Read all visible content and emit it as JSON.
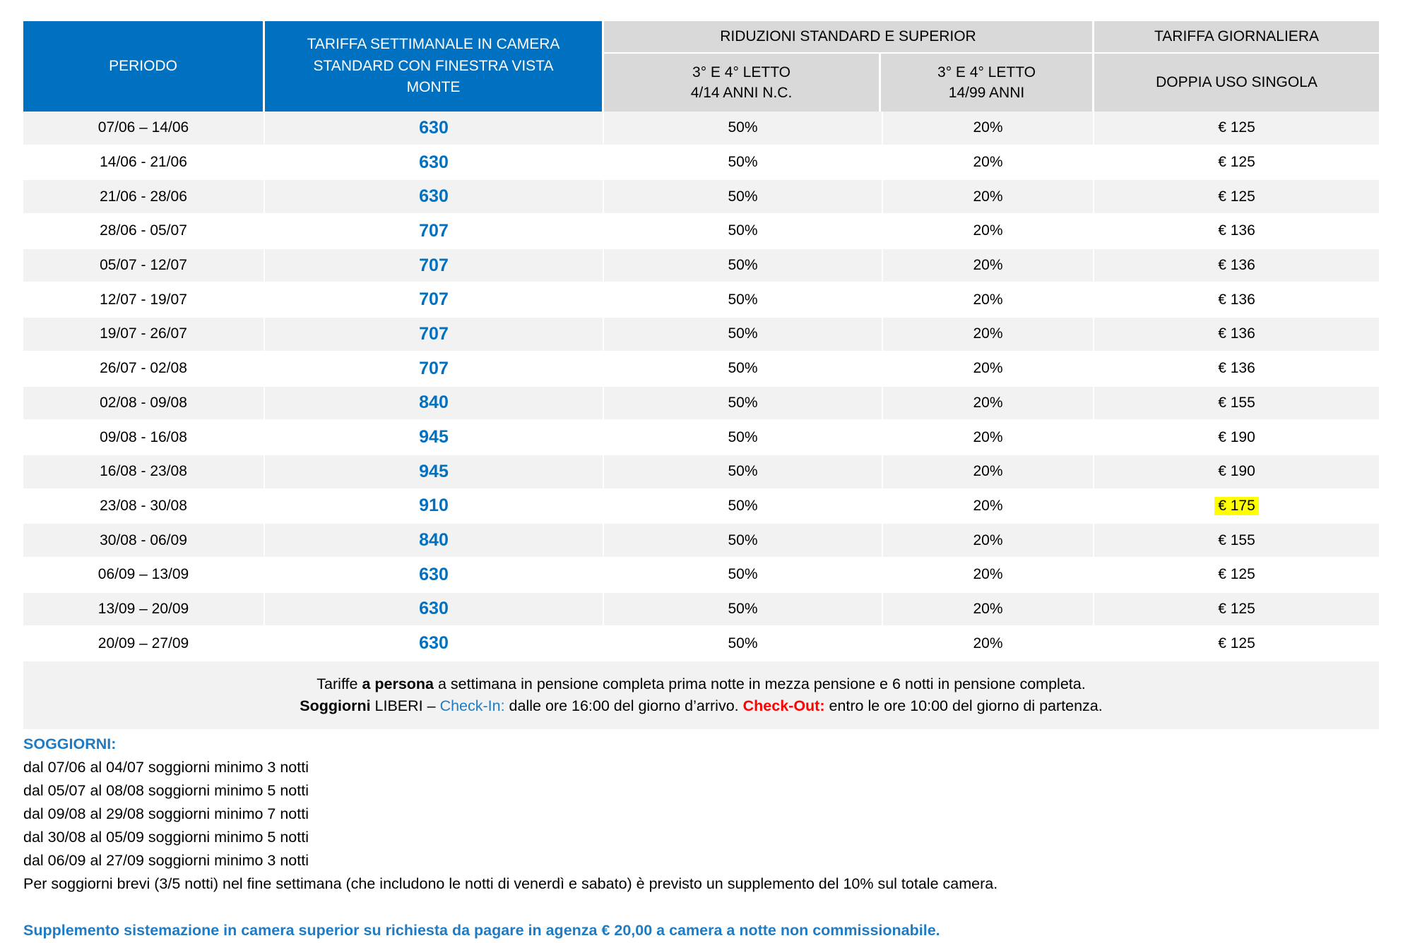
{
  "colors": {
    "header_blue": "#0070C0",
    "header_gray": "#D9D9D9",
    "row_alt_gray": "#F2F2F2",
    "price_blue": "#0070C0",
    "accent_blue": "#1F7CC4",
    "checkout_red": "#FF0000",
    "highlight_yellow": "#FFFF00"
  },
  "table": {
    "header": {
      "periodo": "PERIODO",
      "weekly": "TARIFFA SETTIMANALE IN CAMERA STANDARD CON FINESTRA VISTA MONTE",
      "riduzioni_group": "RIDUZIONI STANDARD E SUPERIOR",
      "col3_line1": "3° E 4° LETTO",
      "col3_line2": "4/14 ANNI N.C.",
      "col4_line1": "3° E 4° LETTO",
      "col4_line2": "14/99 ANNI",
      "daily_group": "TARIFFA GIORNALIERA",
      "daily_sub": "DOPPIA USO SINGOLA"
    },
    "rows": [
      {
        "period": "07/06 – 14/06",
        "weekly": "630",
        "red_child": "50%",
        "red_adult": "20%",
        "daily": "€ 125"
      },
      {
        "period": "14/06 - 21/06",
        "weekly": "630",
        "red_child": "50%",
        "red_adult": "20%",
        "daily": "€ 125"
      },
      {
        "period": "21/06 - 28/06",
        "weekly": "630",
        "red_child": "50%",
        "red_adult": "20%",
        "daily": "€ 125"
      },
      {
        "period": "28/06 - 05/07",
        "weekly": "707",
        "red_child": "50%",
        "red_adult": "20%",
        "daily": "€ 136"
      },
      {
        "period": "05/07 - 12/07",
        "weekly": "707",
        "red_child": "50%",
        "red_adult": "20%",
        "daily": "€ 136"
      },
      {
        "period": "12/07 - 19/07",
        "weekly": "707",
        "red_child": "50%",
        "red_adult": "20%",
        "daily": "€ 136"
      },
      {
        "period": "19/07 - 26/07",
        "weekly": "707",
        "red_child": "50%",
        "red_adult": "20%",
        "daily": "€ 136"
      },
      {
        "period": "26/07 - 02/08",
        "weekly": "707",
        "red_child": "50%",
        "red_adult": "20%",
        "daily": "€ 136"
      },
      {
        "period": "02/08 - 09/08",
        "weekly": "840",
        "red_child": "50%",
        "red_adult": "20%",
        "daily": "€ 155"
      },
      {
        "period": "09/08 - 16/08",
        "weekly": "945",
        "red_child": "50%",
        "red_adult": "20%",
        "daily": "€ 190"
      },
      {
        "period": "16/08 - 23/08",
        "weekly": "945",
        "red_child": "50%",
        "red_adult": "20%",
        "daily": "€ 190"
      },
      {
        "period": "23/08 - 30/08",
        "weekly": "910",
        "red_child": "50%",
        "red_adult": "20%",
        "daily": "€ 175",
        "daily_highlighted": true
      },
      {
        "period": "30/08 - 06/09",
        "weekly": "840",
        "red_child": "50%",
        "red_adult": "20%",
        "daily": "€ 155"
      },
      {
        "period": "06/09 – 13/09",
        "weekly": "630",
        "red_child": "50%",
        "red_adult": "20%",
        "daily": "€ 125"
      },
      {
        "period": "13/09 – 20/09",
        "weekly": "630",
        "red_child": "50%",
        "red_adult": "20%",
        "daily": "€ 125"
      },
      {
        "period": "20/09 – 27/09",
        "weekly": "630",
        "red_child": "50%",
        "red_adult": "20%",
        "daily": "€ 125"
      }
    ]
  },
  "notes": {
    "line1_pre": "Tariffe ",
    "line1_bold": "a persona",
    "line1_post": " a settimana in pensione completa prima notte in mezza pensione e 6 notti in pensione completa.",
    "line2_bold": "Soggiorni",
    "line2_mid": " LIBERI – ",
    "checkin_label": "Check-In:",
    "checkin_text": " dalle ore 16:00 del giorno d’arrivo. ",
    "checkout_label": "Check-Out:",
    "checkout_text": " entro le ore 10:00 del giorno di partenza."
  },
  "stays": {
    "title": "SOGGIORNI:",
    "lines": [
      "dal 07/06 al 04/07 soggiorni minimo 3 notti",
      "dal 05/07 al 08/08 soggiorni minimo 5 notti",
      "dal 09/08 al 29/08 soggiorni minimo 7 notti",
      "dal 30/08 al 05/09 soggiorni minimo 5 notti",
      "dal 06/09 al 27/09 soggiorni minimo 3 notti"
    ],
    "weekend_note": "Per soggiorni brevi (3/5 notti) nel fine settimana (che includono le notti di venerdì e sabato) è previsto un supplemento del 10% sul totale camera.",
    "supplement_note": "Supplemento sistemazione in camera superior su richiesta da pagare in agenza € 20,00 a camera a notte non commissionabile."
  }
}
